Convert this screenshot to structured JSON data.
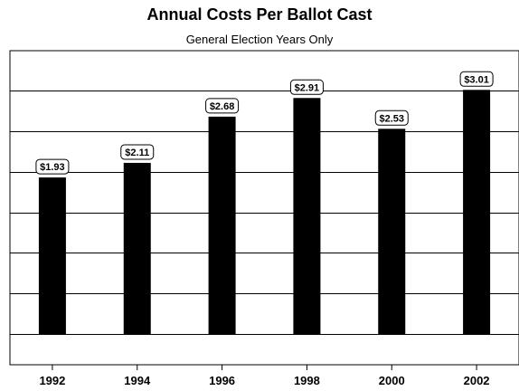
{
  "chart_data": {
    "type": "bar",
    "title": "Annual Costs Per Ballot Cast",
    "subtitle": "General Election Years Only",
    "categories": [
      "1992",
      "1994",
      "1996",
      "1998",
      "2000",
      "2002"
    ],
    "values": [
      1.93,
      2.11,
      2.68,
      2.91,
      2.53,
      3.01
    ],
    "value_labels": [
      "$1.93",
      "$2.11",
      "$2.68",
      "$2.91",
      "$2.53",
      "$3.01"
    ],
    "xlabel": "",
    "ylabel": "",
    "ylim": [
      0,
      3.5
    ],
    "y_grid_step": 0.5,
    "grid": true,
    "legend": "none",
    "colors": {
      "bar": "#000000",
      "grid": "#000000",
      "label_bg": "#ffffff"
    }
  }
}
